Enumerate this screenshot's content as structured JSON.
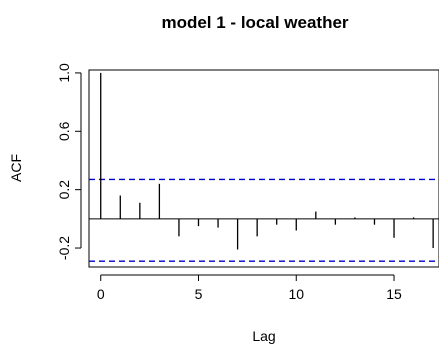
{
  "chart_data": {
    "type": "bar",
    "title": "model 1 - local weather",
    "xlabel": "Lag",
    "ylabel": "ACF",
    "x": [
      0,
      1,
      2,
      3,
      4,
      5,
      6,
      7,
      8,
      9,
      10,
      11,
      12,
      13,
      14,
      15,
      16,
      17
    ],
    "values": [
      1.0,
      0.16,
      0.11,
      0.24,
      -0.12,
      -0.05,
      -0.06,
      -0.21,
      -0.12,
      -0.04,
      -0.08,
      0.05,
      -0.04,
      0.01,
      -0.04,
      -0.13,
      0.01,
      -0.2
    ],
    "confidence_bounds": [
      0.27,
      -0.29
    ],
    "xlim": [
      -0.6,
      17.3
    ],
    "ylim": [
      -0.33,
      1.02
    ],
    "xticks": [
      "0",
      "5",
      "10",
      "15"
    ],
    "xtick_values": [
      0,
      5,
      10,
      15
    ],
    "yticks": [
      "-0.2",
      "0.2",
      "0.6",
      "1.0"
    ],
    "ytick_values": [
      -0.2,
      0.2,
      0.6,
      1.0
    ],
    "zero_line": true,
    "grid": false,
    "colors": {
      "bars": "#000000",
      "bounds": "#0000cc",
      "axes": "#000000"
    }
  }
}
